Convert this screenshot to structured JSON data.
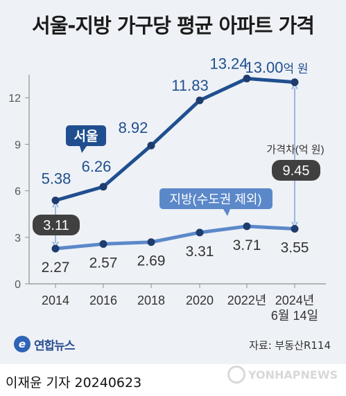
{
  "title": "서울-지방 가구당 평균 아파트 가격",
  "colors": {
    "background": "#eef1f6",
    "seoul": "#1f4f8f",
    "region": "#5b88c9",
    "gap_label_bg": "#404040",
    "axis": "#8f8f8f",
    "gap_arrow": "#7ea6d6"
  },
  "chart_data": {
    "type": "line",
    "title": "서울-지방 가구당 평균 아파트 가격",
    "categories": [
      "2014",
      "2016",
      "2018",
      "2020",
      "2022년",
      "2024년\n6월 14일"
    ],
    "y_ticks": [
      "0",
      "3",
      "6",
      "9",
      "12"
    ],
    "ylim": [
      0,
      13.5
    ],
    "grid": false,
    "series": [
      {
        "name": "서울",
        "values": [
          5.38,
          6.26,
          8.92,
          11.83,
          13.24,
          13.0
        ],
        "labels": [
          "5.38",
          "6.26",
          "8.92",
          "11.83",
          "13.24",
          "13.00"
        ]
      },
      {
        "name": "지방(수도권 제외)",
        "values": [
          2.27,
          2.57,
          2.69,
          3.31,
          3.71,
          3.55
        ],
        "labels": [
          "2.27",
          "2.57",
          "2.69",
          "3.31",
          "3.71",
          "3.55"
        ]
      }
    ],
    "unit_suffix": "억 원",
    "annotations": {
      "gap_title": "가격차(억 원)",
      "gap_start": "3.11",
      "gap_end": "9.45"
    }
  },
  "footer": {
    "brand": "연합뉴스",
    "brand_icon": "yonhap-logo-icon",
    "source": "자료: 부동산R114",
    "credit": "이재윤 기자  20240623",
    "watermark": "YONHAPNEWS"
  }
}
